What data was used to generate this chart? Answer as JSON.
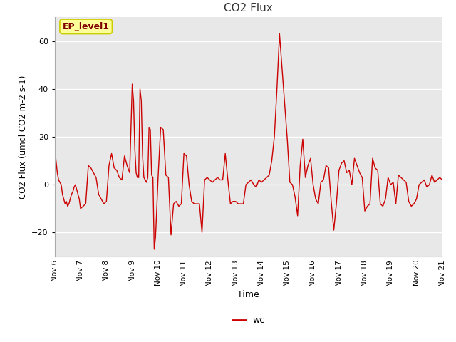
{
  "title": "CO2 Flux",
  "xlabel": "Time",
  "ylabel": "CO2 Flux (umol CO2 m-2 s-1)",
  "ylim": [
    -30,
    70
  ],
  "legend_label": "wc",
  "legend_color": "#cc0000",
  "ep_label": "EP_level1",
  "ep_text_color": "#800000",
  "ep_box_color": "#ffff99",
  "ep_box_edge": "#cccc00",
  "line_color": "#cc0000",
  "bg_color": "#e8e8e8",
  "grid_color": "#ffffff",
  "x_ticks": [
    6,
    7,
    8,
    9,
    10,
    11,
    12,
    13,
    14,
    15,
    16,
    17,
    18,
    19,
    20,
    21
  ],
  "x_tick_labels": [
    "Nov 6",
    "Nov 7",
    "Nov 8",
    "Nov 9",
    "Nov 10",
    "Nov 11",
    "Nov 12",
    "Nov 13",
    "Nov 14",
    "Nov 15",
    "Nov 16",
    "Nov 17",
    "Nov 18",
    "Nov 19",
    "Nov 20",
    "Nov 21"
  ],
  "data_x": [
    6.0,
    6.05,
    6.1,
    6.15,
    6.2,
    6.25,
    6.3,
    6.35,
    6.4,
    6.45,
    6.5,
    6.55,
    6.6,
    6.65,
    6.7,
    6.75,
    6.8,
    6.85,
    6.9,
    6.95,
    7.0,
    7.1,
    7.2,
    7.3,
    7.4,
    7.5,
    7.6,
    7.7,
    7.8,
    7.9,
    8.0,
    8.1,
    8.2,
    8.3,
    8.4,
    8.5,
    8.6,
    8.7,
    8.8,
    8.9,
    9.0,
    9.05,
    9.1,
    9.15,
    9.2,
    9.25,
    9.3,
    9.35,
    9.4,
    9.45,
    9.5,
    9.55,
    9.6,
    9.65,
    9.7,
    9.75,
    9.8,
    9.85,
    9.9,
    9.95,
    10.0,
    10.1,
    10.2,
    10.3,
    10.4,
    10.5,
    10.6,
    10.7,
    10.8,
    10.9,
    11.0,
    11.1,
    11.2,
    11.3,
    11.4,
    11.5,
    11.6,
    11.7,
    11.8,
    11.9,
    12.0,
    12.1,
    12.2,
    12.3,
    12.4,
    12.5,
    12.6,
    12.7,
    12.8,
    12.9,
    13.0,
    13.1,
    13.2,
    13.3,
    13.4,
    13.5,
    13.6,
    13.7,
    13.8,
    13.9,
    14.0,
    14.1,
    14.2,
    14.3,
    14.4,
    14.5,
    14.6,
    14.7,
    15.0,
    15.1,
    15.2,
    15.3,
    15.4,
    15.5,
    15.6,
    15.7,
    15.8,
    15.9,
    16.0,
    16.1,
    16.2,
    16.3,
    16.4,
    16.5,
    16.6,
    16.7,
    16.8,
    16.9,
    17.0,
    17.1,
    17.2,
    17.3,
    17.4,
    17.5,
    17.6,
    17.7,
    17.8,
    17.9,
    18.0,
    18.1,
    18.2,
    18.3,
    18.4,
    18.5,
    18.6,
    18.7,
    18.8,
    18.9,
    19.0,
    19.1,
    19.2,
    19.3,
    19.4,
    19.5,
    19.6,
    19.7,
    19.8,
    19.9,
    20.0,
    20.1,
    20.2,
    20.3,
    20.4,
    20.5,
    20.6,
    20.7,
    20.8,
    20.9,
    21.0
  ],
  "data_y": [
    16,
    10,
    5,
    2,
    1,
    0,
    -4,
    -6,
    -8,
    -7,
    -9,
    -8,
    -6,
    -4,
    -3,
    -1,
    0,
    -2,
    -4,
    -6,
    -10,
    -9,
    -8,
    8,
    7,
    5,
    3,
    -4,
    -6,
    -8,
    -7,
    8,
    13,
    7,
    6,
    3,
    2,
    12,
    8,
    5,
    42,
    35,
    15,
    5,
    3,
    3,
    40,
    35,
    12,
    3,
    2,
    1,
    3,
    24,
    23,
    4,
    3,
    -27,
    -22,
    -10,
    3,
    24,
    23,
    4,
    3,
    -21,
    -8,
    -7,
    -9,
    -8,
    13,
    12,
    0,
    -7,
    -8,
    -8,
    -8,
    -20,
    2,
    3,
    2,
    1,
    2,
    3,
    2,
    2,
    13,
    2,
    -8,
    -7,
    -7,
    -8,
    -8,
    -8,
    0,
    1,
    2,
    0,
    -1,
    2,
    1,
    2,
    3,
    4,
    10,
    20,
    40,
    63,
    19,
    1,
    0,
    -5,
    -13,
    8,
    19,
    3,
    8,
    11,
    0,
    -6,
    -8,
    1,
    2,
    8,
    7,
    -7,
    -19,
    -8,
    6,
    9,
    10,
    5,
    6,
    0,
    11,
    8,
    5,
    3,
    -11,
    -9,
    -8,
    11,
    7,
    6,
    -8,
    -9,
    -6,
    3,
    0,
    1,
    -8,
    4,
    3,
    2,
    1,
    -7,
    -9,
    -8,
    -6,
    0,
    1,
    2,
    -1,
    0,
    4,
    1,
    2,
    3,
    2
  ],
  "gap_x": null
}
